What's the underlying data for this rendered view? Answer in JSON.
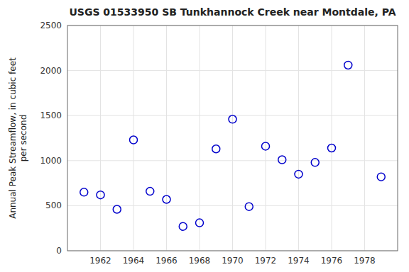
{
  "chart_data": {
    "type": "scatter",
    "title": "USGS 01533950 SB Tunkhannock Creek near Montdale, PA",
    "ylabel": "Annual Peak Streamflow, in cubic feet\nper second",
    "x": [
      1961,
      1962,
      1963,
      1964,
      1965,
      1966,
      1967,
      1968,
      1969,
      1970,
      1971,
      1972,
      1973,
      1974,
      1975,
      1976,
      1977,
      1979
    ],
    "values": [
      650,
      620,
      460,
      1230,
      660,
      570,
      270,
      310,
      1130,
      1460,
      490,
      1160,
      1010,
      850,
      980,
      1140,
      2060,
      820
    ],
    "xlim": [
      1960,
      1980
    ],
    "ylim": [
      0,
      2500
    ],
    "xticks": [
      1962,
      1964,
      1966,
      1968,
      1970,
      1972,
      1974,
      1976,
      1978
    ],
    "yticks": [
      0,
      500,
      1000,
      1500,
      2000,
      2500
    ],
    "color": "#0000cc",
    "marker": "circle",
    "grid": true
  }
}
